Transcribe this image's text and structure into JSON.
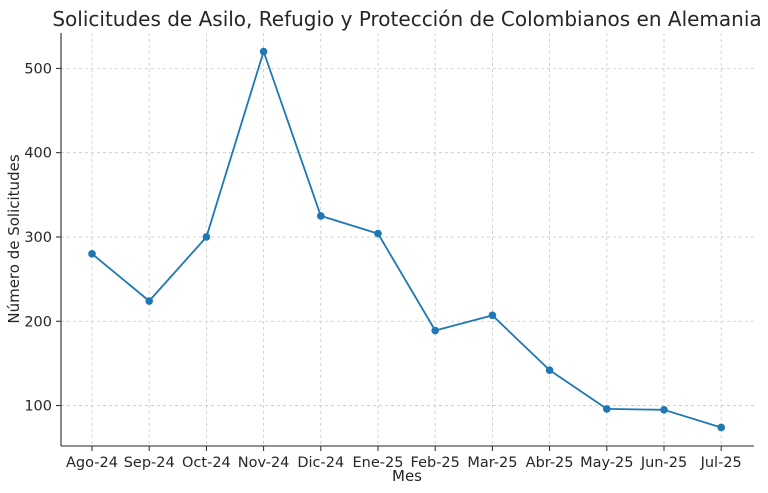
{
  "chart_data": {
    "type": "line",
    "title": "Solicitudes de Asilo, Refugio y Protección de Colombianos en Alemania",
    "xlabel": "Mes",
    "ylabel": "Número de Solicitudes",
    "categories": [
      "Ago-24",
      "Sep-24",
      "Oct-24",
      "Nov-24",
      "Dic-24",
      "Ene-25",
      "Feb-25",
      "Mar-25",
      "Abr-25",
      "May-25",
      "Jun-25",
      "Jul-25"
    ],
    "series": [
      {
        "values": [
          280,
          224,
          300,
          520,
          325,
          304,
          189,
          207,
          142,
          96,
          95,
          74
        ],
        "color": "#1f77b4"
      }
    ],
    "yticks": [
      100,
      200,
      300,
      400,
      500
    ],
    "ylim": [
      52,
      542
    ],
    "grid": true,
    "marker": "circle"
  }
}
